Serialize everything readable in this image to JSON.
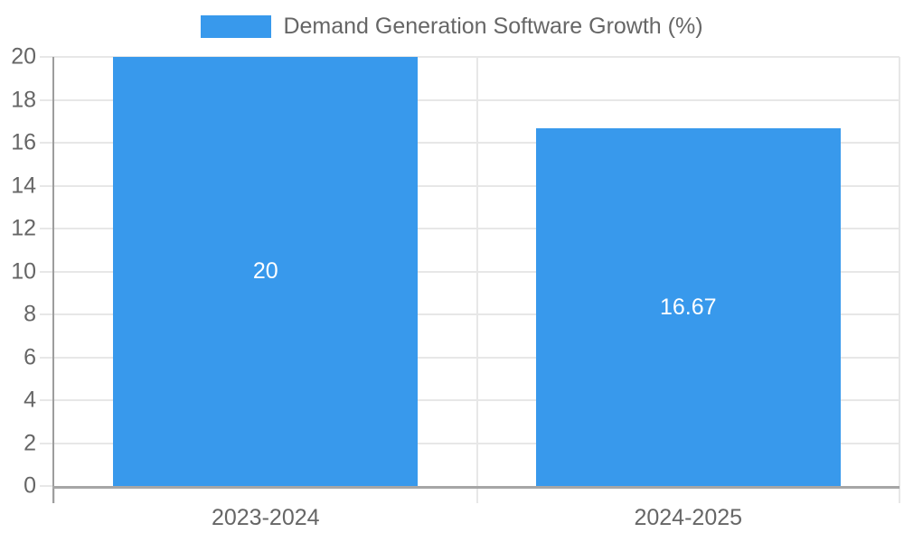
{
  "chart_data": {
    "type": "bar",
    "title": "",
    "legend": "Demand Generation Software Growth (%)",
    "legend_position": "top-center",
    "categories": [
      "2023-2024",
      "2024-2025"
    ],
    "values": [
      20,
      16.67
    ],
    "value_labels": [
      "20",
      "16.67"
    ],
    "xlabel": "",
    "ylabel": "",
    "ylim": [
      0,
      20
    ],
    "ytick_labels": [
      "0",
      "2",
      "4",
      "6",
      "8",
      "10",
      "12",
      "14",
      "16",
      "18",
      "20"
    ],
    "ytick_values": [
      0,
      2,
      4,
      6,
      8,
      10,
      12,
      14,
      16,
      18,
      20
    ],
    "grid": true,
    "colors": {
      "bar": "#3899ec",
      "text": "#666666",
      "grid": "#e7e7e7",
      "axis": "#a6a6a6",
      "value_label": "#ffffff"
    }
  }
}
